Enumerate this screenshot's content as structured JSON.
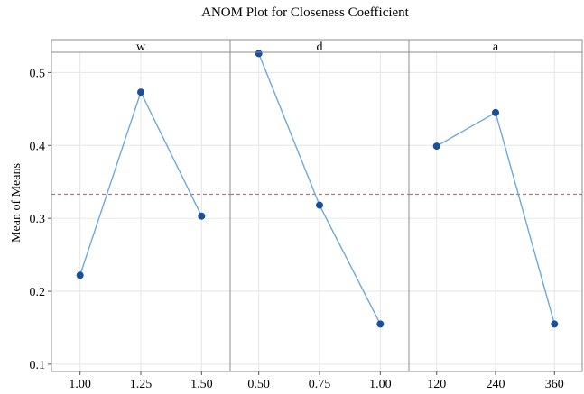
{
  "chart_data": {
    "type": "line",
    "title": "ANOM Plot for Closeness Coefficient",
    "ylabel": "Mean of Means",
    "ylim": [
      0.09,
      0.545
    ],
    "yticks": [
      0.1,
      0.2,
      0.3,
      0.4,
      0.5
    ],
    "ytick_labels": [
      "0.1",
      "0.2",
      "0.3",
      "0.4",
      "0.5"
    ],
    "grid": true,
    "reference_line": {
      "value": 0.333,
      "style": "dashed",
      "color": "#e8615f"
    },
    "colors": {
      "line": "#6fa8dc",
      "marker": "#1a4f99",
      "grid": "#e6e6e6",
      "border": "#8c8c8c"
    },
    "panels": [
      {
        "label": "w",
        "x": [
          "1.00",
          "1.25",
          "1.50"
        ],
        "values": [
          0.222,
          0.473,
          0.303
        ]
      },
      {
        "label": "d",
        "x": [
          "0.50",
          "0.75",
          "1.00"
        ],
        "values": [
          0.526,
          0.318,
          0.155
        ]
      },
      {
        "label": "a",
        "x": [
          "120",
          "240",
          "360"
        ],
        "values": [
          0.399,
          0.445,
          0.155
        ]
      }
    ]
  }
}
